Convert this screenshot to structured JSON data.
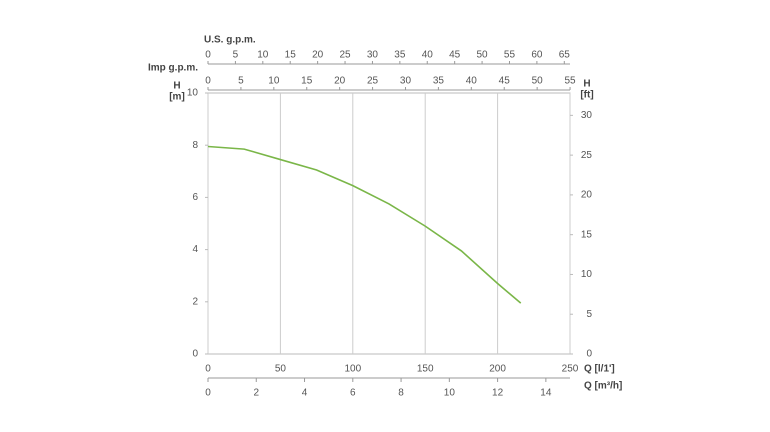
{
  "chart_data": {
    "type": "line",
    "xlabel": "Q [l/1']",
    "xlim": [
      0,
      250
    ],
    "xticks": [
      0,
      50,
      100,
      150,
      200,
      250
    ],
    "ylabel": [
      "H",
      "[m]"
    ],
    "ylim": [
      0,
      10
    ],
    "yticks": [
      0,
      2,
      4,
      6,
      8,
      10
    ],
    "y2label": [
      "H",
      "[ft]"
    ],
    "y2lim": [
      0,
      32.81
    ],
    "y2ticks": [
      0,
      5,
      10,
      15,
      20,
      25,
      30
    ],
    "x2": {
      "label": "Q [m³/h]",
      "lim": [
        0,
        15
      ],
      "ticks": [
        0,
        2,
        4,
        6,
        8,
        10,
        12,
        14
      ]
    },
    "top_axes": [
      {
        "label": "U.S. g.p.m.",
        "lim": [
          0,
          66.04
        ],
        "ticks": [
          0,
          5,
          10,
          15,
          20,
          25,
          30,
          35,
          40,
          45,
          50,
          55,
          60,
          65
        ]
      },
      {
        "label": "Imp g.p.m.",
        "lim": [
          0,
          54.99
        ],
        "ticks": [
          0,
          5,
          10,
          15,
          20,
          25,
          30,
          35,
          40,
          45,
          50,
          55
        ]
      }
    ],
    "grid": true,
    "series": [
      {
        "color": "#7ab648",
        "x": [
          0,
          25,
          50,
          75,
          100,
          125,
          150,
          175,
          200,
          216
        ],
        "values": [
          7.95,
          7.85,
          7.45,
          7.05,
          6.45,
          5.75,
          4.9,
          3.95,
          2.7,
          1.95
        ]
      }
    ]
  }
}
